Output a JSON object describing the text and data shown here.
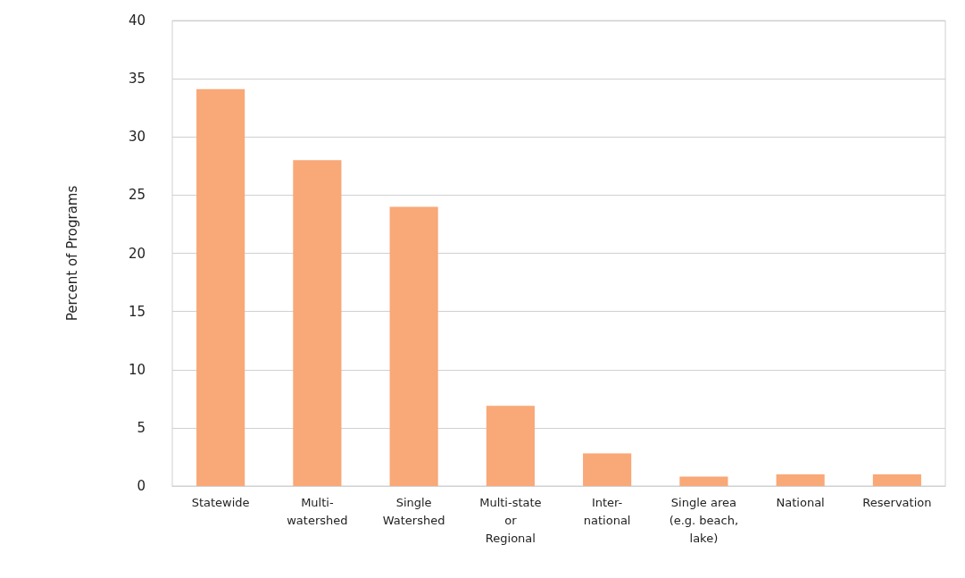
{
  "chart_data": {
    "type": "bar",
    "ylabel": "Percent of Programs",
    "categories": [
      "Statewide",
      "Multi-\nwatershed",
      "Single\nWatershed",
      "Multi-state\nor\nRegional",
      "Inter-\nnational",
      "Single area\n(e.g. beach,\nlake)",
      "National",
      "Reservation"
    ],
    "values": [
      34.1,
      28,
      24,
      6.9,
      2.8,
      0.8,
      1,
      1
    ],
    "color": "#f9a877",
    "ylim": [
      0,
      40
    ],
    "yticks": [
      0,
      5,
      10,
      15,
      20,
      25,
      30,
      35,
      40
    ],
    "grid": "y"
  }
}
